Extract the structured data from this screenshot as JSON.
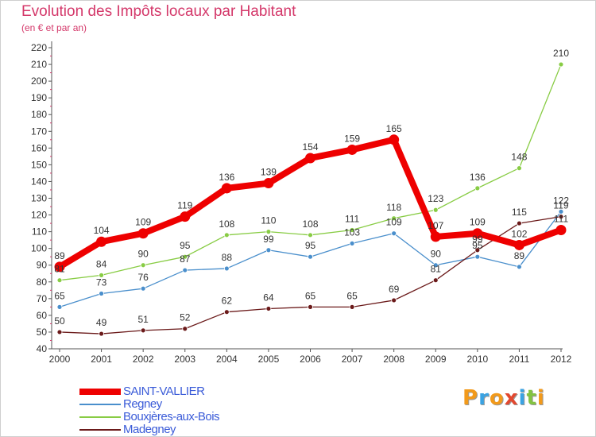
{
  "title": "Evolution des Impôts locaux par Habitant",
  "subtitle": "(en € et par an)",
  "logo": {
    "text": "Proxiti",
    "letters": [
      "P",
      "r",
      "o",
      "x",
      "i",
      "t",
      "i"
    ],
    "colors": [
      "#f29a1b",
      "#3aa3e3",
      "#f29a1b",
      "#e2482f",
      "#3aa3e3",
      "#83c341",
      "#f29a1b"
    ]
  },
  "chart_data": {
    "type": "line",
    "title": "Evolution des Impôts locaux par Habitant",
    "subtitle": "(en € et par an)",
    "xlabel": "",
    "ylabel": "",
    "ylim": [
      40,
      220
    ],
    "ytick_step": 10,
    "categories": [
      "2000",
      "2001",
      "2002",
      "2003",
      "2004",
      "2005",
      "2006",
      "2007",
      "2008",
      "2009",
      "2010",
      "2011",
      "2012"
    ],
    "series": [
      {
        "name": "SAINT-VALLIER",
        "color": "#ee0000",
        "values": [
          89,
          104,
          109,
          119,
          136,
          139,
          154,
          159,
          165,
          107,
          109,
          102,
          111
        ]
      },
      {
        "name": "Regney",
        "color": "#4a8fcc",
        "values": [
          65,
          73,
          76,
          87,
          88,
          99,
          95,
          103,
          109,
          90,
          95,
          89,
          122
        ]
      },
      {
        "name": "Bouxjères-aux-Bois",
        "color": "#88cc44",
        "values": [
          81,
          84,
          90,
          95,
          108,
          110,
          108,
          111,
          118,
          123,
          136,
          148,
          210
        ]
      },
      {
        "name": "Madegney",
        "color": "#6b1a1a",
        "values": [
          50,
          49,
          51,
          52,
          62,
          64,
          65,
          65,
          69,
          81,
          99,
          115,
          119
        ]
      }
    ],
    "legend_position": "bottom-left",
    "grid": false
  }
}
